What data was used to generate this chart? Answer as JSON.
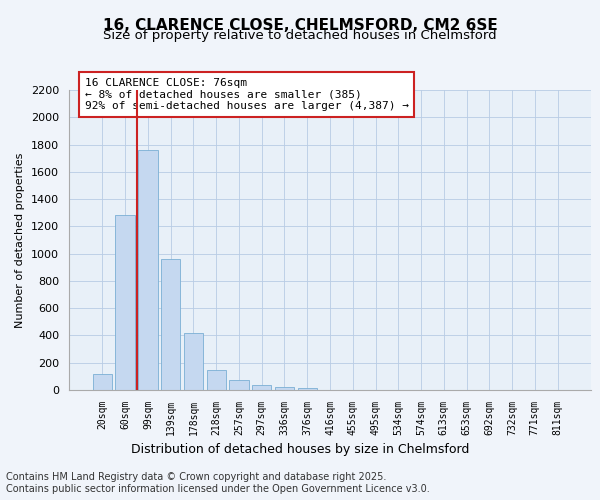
{
  "title1": "16, CLARENCE CLOSE, CHELMSFORD, CM2 6SE",
  "title2": "Size of property relative to detached houses in Chelmsford",
  "xlabel": "Distribution of detached houses by size in Chelmsford",
  "ylabel": "Number of detached properties",
  "bar_labels": [
    "20sqm",
    "60sqm",
    "99sqm",
    "139sqm",
    "178sqm",
    "218sqm",
    "257sqm",
    "297sqm",
    "336sqm",
    "376sqm",
    "416sqm",
    "455sqm",
    "495sqm",
    "534sqm",
    "574sqm",
    "613sqm",
    "653sqm",
    "692sqm",
    "732sqm",
    "771sqm",
    "811sqm"
  ],
  "bar_values": [
    120,
    1280,
    1760,
    960,
    415,
    150,
    75,
    40,
    20,
    12,
    0,
    0,
    0,
    0,
    0,
    0,
    0,
    0,
    0,
    0,
    0
  ],
  "bar_color": "#c5d8f0",
  "bar_edge_color": "#7bafd4",
  "annotation_box_text": "16 CLARENCE CLOSE: 76sqm\n← 8% of detached houses are smaller (385)\n92% of semi-detached houses are larger (4,387) →",
  "redline_x": 1.5,
  "ylim": [
    0,
    2200
  ],
  "yticks": [
    0,
    200,
    400,
    600,
    800,
    1000,
    1200,
    1400,
    1600,
    1800,
    2000,
    2200
  ],
  "footer1": "Contains HM Land Registry data © Crown copyright and database right 2025.",
  "footer2": "Contains public sector information licensed under the Open Government Licence v3.0.",
  "bg_color": "#f0f4fa",
  "plot_bg_color": "#e8f0f8",
  "grid_color": "#b8cce4",
  "title_fontsize": 11,
  "subtitle_fontsize": 9.5,
  "annotation_fontsize": 8,
  "footer_fontsize": 7,
  "ylabel_fontsize": 8,
  "xlabel_fontsize": 9
}
